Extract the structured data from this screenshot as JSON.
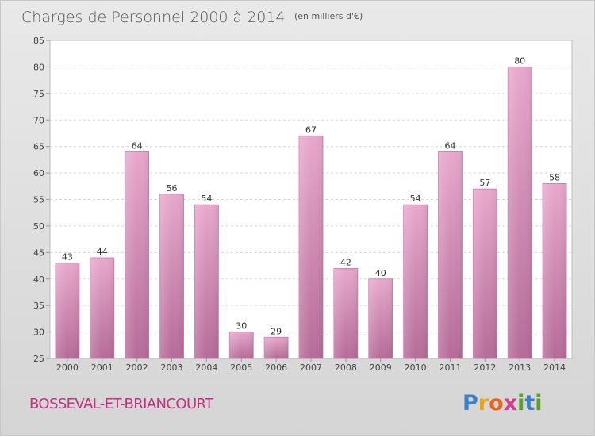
{
  "chart_data": {
    "type": "bar",
    "title": "Charges de Personnel 2000 à 2014",
    "subtitle": "(en milliers d'€)",
    "categories": [
      "2000",
      "2001",
      "2002",
      "2003",
      "2004",
      "2005",
      "2006",
      "2007",
      "2008",
      "2009",
      "2010",
      "2011",
      "2012",
      "2013",
      "2014"
    ],
    "values": [
      43,
      44,
      64,
      56,
      54,
      30,
      29,
      67,
      42,
      40,
      54,
      64,
      57,
      80,
      58
    ],
    "ylim": [
      25,
      85
    ],
    "yticks": [
      25,
      30,
      35,
      40,
      45,
      50,
      55,
      60,
      65,
      70,
      75,
      80,
      85
    ],
    "grid": true,
    "bar_color": "#d98bb8"
  },
  "footer": {
    "commune": "BOSSEVAL-ET-BRIANCOURT",
    "logo_letters": [
      "P",
      "r",
      "o",
      "x",
      "i",
      "t",
      "i"
    ],
    "logo_colors": [
      "#3b7fc4",
      "#e8a316",
      "#e8641a",
      "#d43c8f",
      "#5aa02c",
      "#3b7fc4",
      "#5aa02c"
    ]
  }
}
